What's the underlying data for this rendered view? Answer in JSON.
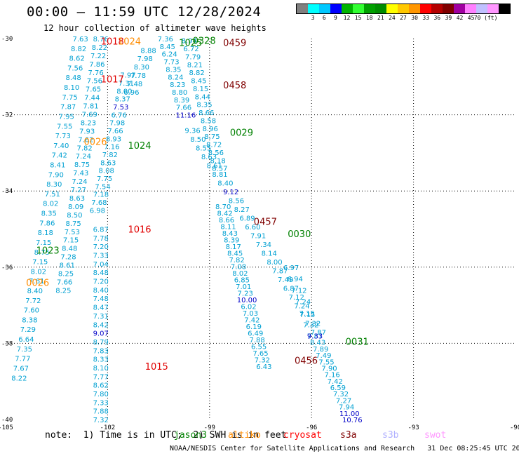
{
  "title": "00:00 – 11:59 UTC 12/28/2024",
  "subtitle": "12 hour collection of altimeter wave heights",
  "legend": {
    "colors": [
      "#808080",
      "#00ffff",
      "#00c8ff",
      "#0000ff",
      "#00b400",
      "#32ff32",
      "#00a000",
      "#008c00",
      "#ffff00",
      "#ffc800",
      "#ff9600",
      "#ff0000",
      "#b40000",
      "#800000",
      "#a000a0",
      "#ff80ff",
      "#c0c0ff",
      "#ff96ff",
      "#000000"
    ],
    "labels": [
      "3",
      "6",
      "9",
      "12",
      "15",
      "18",
      "21",
      "24",
      "27",
      "30",
      "33",
      "36",
      "39",
      "42",
      "45",
      "70 (ft)"
    ]
  },
  "note": {
    "prefix": "note:  1) Time is in UTC;  2) SWH is in feet",
    "satellites": [
      {
        "name": "jason3",
        "color": "#008000"
      },
      {
        "name": "altiko",
        "color": "#ff8c00"
      },
      {
        "name": "cryosat",
        "color": "#ff0000"
      },
      {
        "name": "s3a",
        "color": "#800000"
      },
      {
        "name": "s3b",
        "color": "#b0b0ff"
      },
      {
        "name": "swot",
        "color": "#ff96ff"
      }
    ]
  },
  "credit": "NOAA/NESDIS Center for Satellite Applications and Research   31 Dec 08:25:45 UTC 2024",
  "chart_data": {
    "type": "scatter",
    "xlim": [
      -105,
      -90
    ],
    "ylim": [
      -40,
      -30
    ],
    "xticks": [
      "-105",
      "-102",
      "-99",
      "-96",
      "-93",
      "-90"
    ],
    "yticks": [
      "-30",
      "-32",
      "-34",
      "-36",
      "-38",
      "-40"
    ],
    "grid": true,
    "colors": {
      "cyan": "#00a0d2",
      "blue": "#0000c8",
      "green": "#008000",
      "orange": "#ff8c00",
      "red": "#e00000",
      "darkred": "#800000"
    },
    "time_labels": [
      {
        "text": "1018",
        "x": -102.2,
        "y": -30.06,
        "c": "red"
      },
      {
        "text": "1024",
        "x": -101.7,
        "y": -30.06,
        "c": "orange"
      },
      {
        "text": "1025",
        "x": -99.9,
        "y": -30.1,
        "c": "green"
      },
      {
        "text": "0328",
        "x": -99.5,
        "y": -30.05,
        "c": "green"
      },
      {
        "text": "0459",
        "x": -98.6,
        "y": -30.1,
        "c": "darkred"
      },
      {
        "text": "1017",
        "x": -102.2,
        "y": -31.06,
        "c": "red"
      },
      {
        "text": "0458",
        "x": -98.6,
        "y": -31.22,
        "c": "darkred"
      },
      {
        "text": "0029",
        "x": -98.4,
        "y": -32.46,
        "c": "green"
      },
      {
        "text": "1024",
        "x": -101.4,
        "y": -32.8,
        "c": "green"
      },
      {
        "text": "0026",
        "x": -102.7,
        "y": -32.7,
        "c": "orange"
      },
      {
        "text": "1016",
        "x": -101.4,
        "y": -35.0,
        "c": "red"
      },
      {
        "text": "0457",
        "x": -97.7,
        "y": -34.8,
        "c": "darkred"
      },
      {
        "text": "0030",
        "x": -96.7,
        "y": -35.12,
        "c": "green"
      },
      {
        "text": "1023",
        "x": -104.1,
        "y": -35.55,
        "c": "green"
      },
      {
        "text": "0026",
        "x": -104.4,
        "y": -36.4,
        "c": "orange"
      },
      {
        "text": "1015",
        "x": -100.9,
        "y": -38.6,
        "c": "red"
      },
      {
        "text": "0456",
        "x": -96.5,
        "y": -38.44,
        "c": "darkred"
      },
      {
        "text": "0031",
        "x": -95.0,
        "y": -37.95,
        "c": "green"
      }
    ],
    "tracks": [
      {
        "name": "track-a",
        "x0": -102.8,
        "y0": -30.0,
        "x1": -104.6,
        "y1": -38.9,
        "values": [
          "7.63",
          "8.82",
          "8.62",
          "7.56",
          "8.48",
          "8.10",
          "7.75",
          "7.87",
          "7.95",
          "7.55",
          "7.73",
          "7.40",
          "7.42",
          "8.41",
          "7.90",
          "8.30",
          "7.51",
          "8.02",
          "8.35",
          "7.86",
          "8.18",
          "7.15",
          "8.75",
          "7.15",
          "8.02",
          "7.61",
          "8.40",
          "7.72",
          "7.60",
          "8.38",
          "7.29",
          "6.64",
          "7.35",
          "7.77",
          "7.67",
          "8.22"
        ],
        "specials": {}
      },
      {
        "name": "track-b",
        "x0": -102.2,
        "y0": -30.0,
        "x1": -103.3,
        "y1": -36.6,
        "values": [
          "8.76",
          "8.22",
          "7.22",
          "7.86",
          "7.76",
          "7.56",
          "7.65",
          "7.44",
          "7.81",
          "7.69",
          "8.23",
          "7.93",
          "7.62",
          "7.82",
          "7.24",
          "8.75",
          "7.43",
          "7.24",
          "7.27",
          "8.63",
          "8.09",
          "8.50",
          "8.75",
          "7.53",
          "7.15",
          "8.48",
          "7.28",
          "8.61",
          "8.25",
          "7.66",
          "8.25"
        ],
        "specials": {}
      },
      {
        "name": "track-c",
        "x0": -101.4,
        "y0": -30.95,
        "x1": -102.3,
        "y1": -34.5,
        "values": [
          "7.97",
          "7.31",
          "8.00",
          "8.37",
          "7.53",
          "6.76",
          "7.98",
          "7.66",
          "8.93",
          "7.16",
          "7.82",
          "8.63",
          "8.08",
          "7.75",
          "7.54",
          "7.18",
          "7.68",
          "6.98"
        ],
        "specials": {
          "4": "blue"
        }
      },
      {
        "name": "track-d",
        "x0": -100.8,
        "y0": -30.3,
        "x1": -101.3,
        "y1": -31.4,
        "values": [
          "8.88",
          "7.98",
          "8.30",
          "7.78",
          "7.48",
          "6.96"
        ],
        "specials": {}
      },
      {
        "name": "track-e",
        "x0": -102.2,
        "y0": -35.0,
        "x1": -102.2,
        "y1": -40.0,
        "values": [
          "6.87",
          "7.78",
          "7.20",
          "7.33",
          "7.04",
          "8.48",
          "7.20",
          "8.40",
          "7.48",
          "8.47",
          "7.31",
          "8.42",
          "9.07",
          "8.79",
          "7.83",
          "8.33",
          "8.10",
          "7.77",
          "8.62",
          "7.80",
          "7.33",
          "7.88",
          "7.32"
        ],
        "specials": {
          "12": "blue"
        }
      },
      {
        "name": "track-f",
        "x0": -100.3,
        "y0": -30.0,
        "x1": -99.7,
        "y1": -32.0,
        "values": [
          "7.36",
          "8.45",
          "6.24",
          "7.73",
          "8.35",
          "8.24",
          "8.23",
          "8.80",
          "8.39",
          "7.66",
          "11.16"
        ],
        "specials": {
          "10": "blue"
        }
      },
      {
        "name": "track-g",
        "x0": -99.6,
        "y0": -30.05,
        "x1": -98.7,
        "y1": -33.4,
        "values": [
          "8.94",
          "6.72",
          "7.79",
          "8.21",
          "8.82",
          "8.45",
          "8.15",
          "8.44",
          "8.35",
          "8.66",
          "8.58",
          "8.96",
          "8.75",
          "8.72",
          "8.56",
          "8.18",
          "8.57"
        ],
        "specials": {}
      },
      {
        "name": "track-h",
        "x0": -99.5,
        "y0": -32.4,
        "x1": -95.8,
        "y1": -37.7,
        "values": [
          "9.36",
          "8.50",
          "8.55",
          "8.63",
          "8.61",
          "8.81",
          "8.40",
          "9.12",
          "8.56",
          "8.27",
          "6.89",
          "6.60",
          "7.91",
          "7.34",
          "8.14",
          "8.00",
          "7.87",
          "7.49",
          "6.87",
          "7.12",
          "7.24",
          "7.15",
          "7.32",
          "7.87"
        ],
        "specials": {
          "7": "blue"
        }
      },
      {
        "name": "track-i",
        "x0": -98.6,
        "y0": -34.4,
        "x1": -97.4,
        "y1": -38.6,
        "values": [
          "8.70",
          "8.42",
          "8.66",
          "8.11",
          "8.43",
          "8.39",
          "8.17",
          "8.45",
          "7.82",
          "7.08",
          "8.02",
          "6.85",
          "7.01",
          "7.23",
          "10.00",
          "6.02",
          "7.03",
          "7.42",
          "6.19",
          "6.49",
          "7.88",
          "6.55",
          "7.65",
          "7.32",
          "6.43"
        ],
        "specials": {
          "14": "blue"
        }
      },
      {
        "name": "track-j",
        "x0": -96.6,
        "y0": -36.0,
        "x1": -95.9,
        "y1": -37.8,
        "values": [
          "6.97",
          "6.94",
          "7.12",
          "7.24",
          "7.15",
          "7.32",
          "7.87"
        ],
        "specials": {}
      },
      {
        "name": "track-k",
        "x0": -95.9,
        "y0": -37.8,
        "x1": -94.8,
        "y1": -40.0,
        "values": [
          "9.33",
          "8.43",
          "7.89",
          "7.49",
          "7.55",
          "7.90",
          "7.16",
          "7.42",
          "6.59",
          "7.32",
          "7.27",
          "7.94",
          "11.00",
          "10.76"
        ],
        "specials": {
          "0": "blue",
          "12": "blue",
          "13": "blue"
        }
      }
    ]
  }
}
